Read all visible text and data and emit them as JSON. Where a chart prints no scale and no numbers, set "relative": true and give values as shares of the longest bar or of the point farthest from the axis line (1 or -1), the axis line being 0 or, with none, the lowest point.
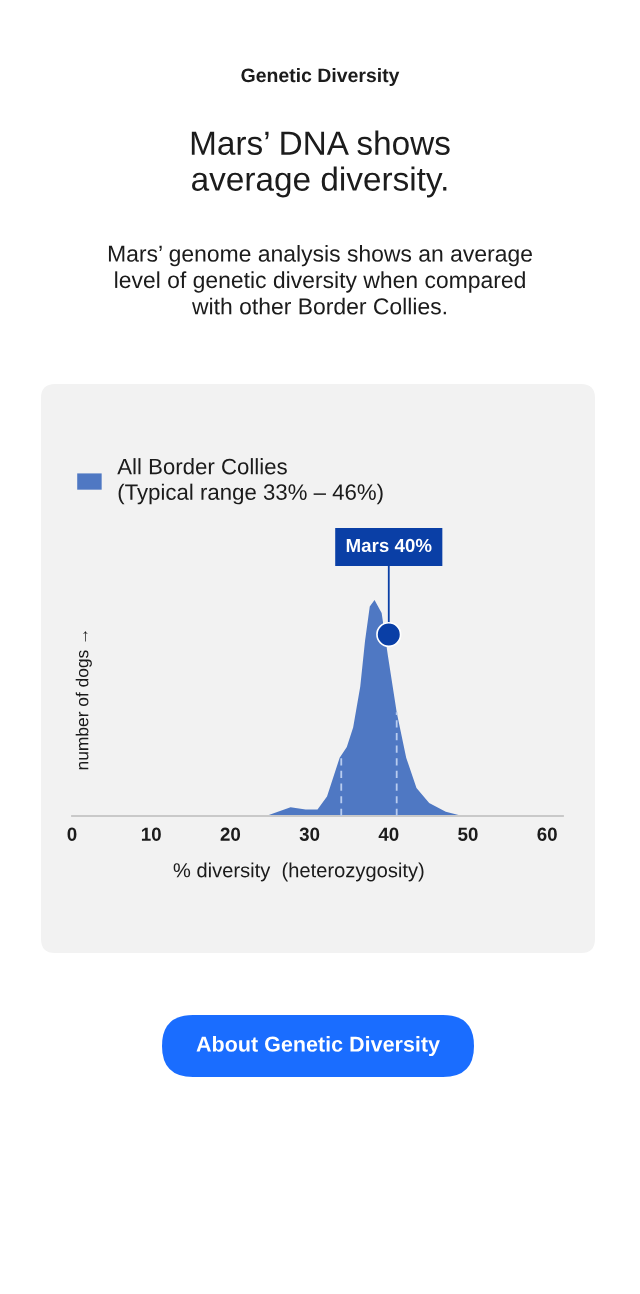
{
  "chart_data": {
    "type": "area",
    "title": "Genetic Diversity",
    "subtitle": "Mars’ DNA shows\naverage diversity.",
    "xlabel": "% diversity  (heterozygosity)",
    "ylabel": "number of dogs →",
    "x": [
      24.5,
      26.0,
      27.6,
      29.5,
      31.0,
      32.2,
      33.8,
      34.7,
      35.5,
      36.4,
      37.0,
      37.6,
      38.2,
      39.1,
      39.9,
      41.0,
      42.2,
      43.5,
      45.1,
      47.2,
      49.3
    ],
    "series": [
      {
        "name": "All Border Collies\n(Typical range 33% – 46%)",
        "color": "#4f78c3",
        "values": [
          0,
          0.02,
          0.04,
          0.03,
          0.03,
          0.09,
          0.27,
          0.32,
          0.41,
          0.6,
          0.81,
          0.97,
          1,
          0.94,
          0.74,
          0.48,
          0.27,
          0.13,
          0.06,
          0.02,
          0
        ]
      }
    ],
    "relative": true,
    "xlim": [
      0,
      62
    ],
    "xticks": [
      0,
      10,
      20,
      30,
      40,
      50,
      60
    ],
    "legend": "top left",
    "ref_lines": [
      {
        "axis": "x",
        "value": 34,
        "color": "#b8ccef",
        "line_style": "dashed"
      },
      {
        "axis": "x",
        "value": 41,
        "color": "#b8ccef",
        "line_style": "dashed"
      }
    ],
    "annotations": [
      {
        "text": "Mars 40%",
        "x": 40,
        "y": 0.84
      },
      "Mars’ genome analysis shows an average\nlevel of genetic diversity when compared\nwith other Border Collies.",
      "About Genetic Diversity"
    ]
  }
}
